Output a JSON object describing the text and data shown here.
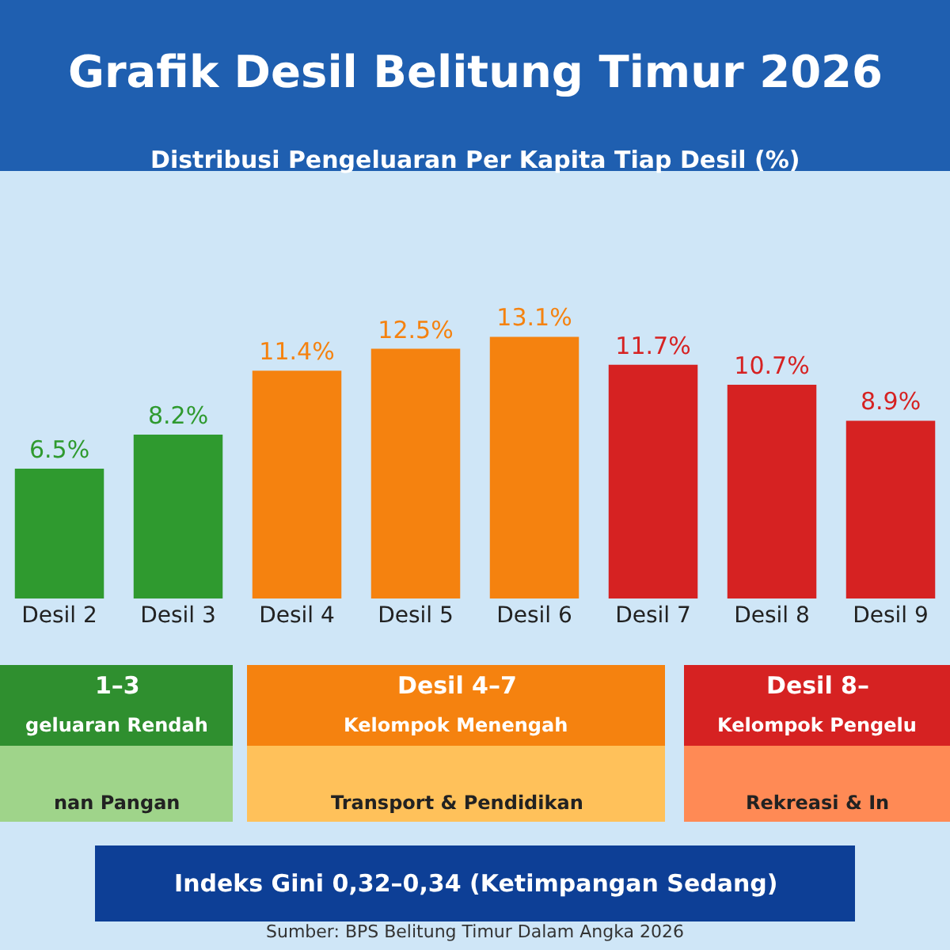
{
  "chart_data": {
    "type": "bar",
    "title": "Grafik Desil Belitung Timur 2026",
    "subtitle": "Distribusi Pengeluaran Per Kapita Tiap Desil (%)",
    "categories": [
      "Desil 2",
      "Desil 3",
      "Desil 4",
      "Desil 5",
      "Desil 6",
      "Desil 7",
      "Desil 8",
      "Desil 9"
    ],
    "values": [
      6.5,
      8.2,
      11.4,
      12.5,
      13.1,
      11.7,
      10.7,
      8.9
    ],
    "value_labels": [
      "6.5%",
      "8.2%",
      "11.4%",
      "12.5%",
      "13.1%",
      "11.7%",
      "10.7%",
      "8.9%"
    ],
    "colors": [
      "#2f9a2f",
      "#2f9a2f",
      "#f5820f",
      "#f5820f",
      "#f5820f",
      "#d62222",
      "#d62222",
      "#d62222"
    ],
    "legend": false,
    "annotations": [
      "1–3\ngeluaran Rendah\n\nnan Pangan",
      "Desil 4–7\nKelompok Menengah\n\nTransport & Pendidikan",
      "Desil 8–\nKelompok Pengelu\n\nRekreasi & In",
      "Indeks Gini 0,32–0,34 (Ketimpangan Sedang)",
      "Sumber: BPS Belitung Timur Dalam Angka 2026"
    ]
  }
}
